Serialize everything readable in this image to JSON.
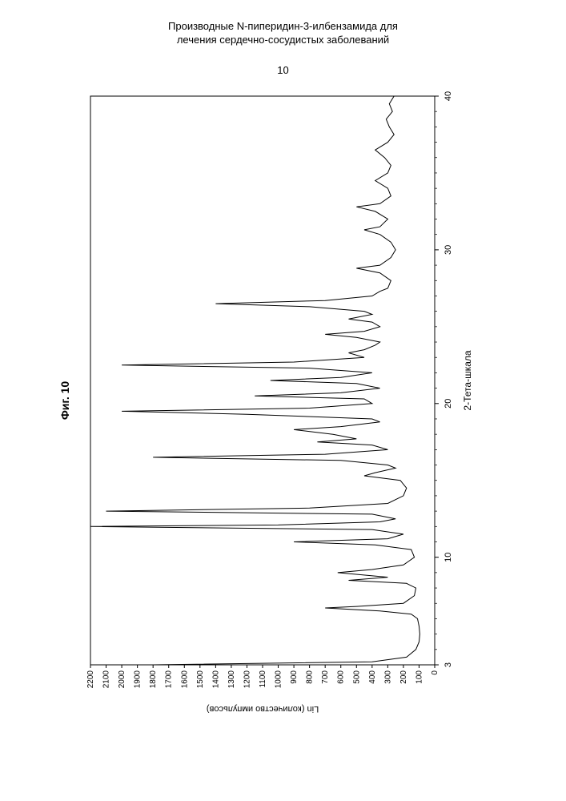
{
  "doc": {
    "header_line1": "Производные N-пиперидин-3-илбензамида для",
    "header_line2": "лечения сердечно-сосудистых заболеваний",
    "page_number": "10"
  },
  "figure": {
    "label": "Фиг. 10",
    "type": "xrd-pattern",
    "y_axis": {
      "label": "Lin (количество импульсов)",
      "min": 0,
      "max": 2200,
      "ticks": [
        0,
        100,
        200,
        300,
        400,
        500,
        600,
        700,
        800,
        900,
        1000,
        1100,
        1200,
        1300,
        1400,
        1500,
        1600,
        1700,
        1800,
        1900,
        2000,
        2100,
        2200
      ],
      "label_fontsize": 11,
      "tick_fontsize": 10
    },
    "x_axis": {
      "label": "2-Тета-шкала",
      "min": 3,
      "max": 40,
      "ticks": [
        3,
        10,
        20,
        30,
        40
      ],
      "label_fontsize": 12,
      "tick_fontsize": 11
    },
    "line_color": "#000000",
    "line_width": 1,
    "background_color": "#ffffff",
    "data_points": [
      [
        3.0,
        1800
      ],
      [
        3.2,
        400
      ],
      [
        3.5,
        180
      ],
      [
        4.0,
        120
      ],
      [
        4.5,
        100
      ],
      [
        5.0,
        95
      ],
      [
        5.5,
        100
      ],
      [
        6.0,
        110
      ],
      [
        6.3,
        150
      ],
      [
        6.5,
        350
      ],
      [
        6.7,
        700
      ],
      [
        6.8,
        500
      ],
      [
        7.0,
        200
      ],
      [
        7.5,
        130
      ],
      [
        8.0,
        120
      ],
      [
        8.3,
        180
      ],
      [
        8.5,
        550
      ],
      [
        8.7,
        300
      ],
      [
        9.0,
        620
      ],
      [
        9.2,
        400
      ],
      [
        9.5,
        200
      ],
      [
        10.0,
        130
      ],
      [
        10.5,
        150
      ],
      [
        10.8,
        380
      ],
      [
        11.0,
        900
      ],
      [
        11.2,
        300
      ],
      [
        11.5,
        200
      ],
      [
        11.8,
        400
      ],
      [
        12.0,
        2200
      ],
      [
        12.1,
        1000
      ],
      [
        12.3,
        350
      ],
      [
        12.5,
        250
      ],
      [
        12.8,
        400
      ],
      [
        13.0,
        2100
      ],
      [
        13.2,
        800
      ],
      [
        13.5,
        300
      ],
      [
        14.0,
        200
      ],
      [
        14.5,
        180
      ],
      [
        15.0,
        220
      ],
      [
        15.3,
        450
      ],
      [
        15.5,
        380
      ],
      [
        15.8,
        250
      ],
      [
        16.0,
        300
      ],
      [
        16.3,
        600
      ],
      [
        16.5,
        1800
      ],
      [
        16.7,
        700
      ],
      [
        17.0,
        300
      ],
      [
        17.3,
        400
      ],
      [
        17.5,
        750
      ],
      [
        17.7,
        500
      ],
      [
        18.0,
        650
      ],
      [
        18.3,
        900
      ],
      [
        18.5,
        600
      ],
      [
        18.8,
        350
      ],
      [
        19.0,
        400
      ],
      [
        19.3,
        1200
      ],
      [
        19.5,
        2000
      ],
      [
        19.7,
        800
      ],
      [
        20.0,
        400
      ],
      [
        20.3,
        450
      ],
      [
        20.5,
        1150
      ],
      [
        20.7,
        600
      ],
      [
        21.0,
        350
      ],
      [
        21.3,
        500
      ],
      [
        21.5,
        1050
      ],
      [
        21.7,
        600
      ],
      [
        22.0,
        400
      ],
      [
        22.3,
        800
      ],
      [
        22.5,
        2000
      ],
      [
        22.7,
        900
      ],
      [
        23.0,
        450
      ],
      [
        23.3,
        550
      ],
      [
        23.5,
        450
      ],
      [
        23.8,
        380
      ],
      [
        24.0,
        350
      ],
      [
        24.3,
        500
      ],
      [
        24.5,
        700
      ],
      [
        24.7,
        450
      ],
      [
        25.0,
        350
      ],
      [
        25.3,
        400
      ],
      [
        25.5,
        550
      ],
      [
        25.8,
        400
      ],
      [
        26.0,
        450
      ],
      [
        26.3,
        800
      ],
      [
        26.5,
        1400
      ],
      [
        26.7,
        700
      ],
      [
        27.0,
        400
      ],
      [
        27.3,
        350
      ],
      [
        27.5,
        300
      ],
      [
        28.0,
        280
      ],
      [
        28.5,
        350
      ],
      [
        28.8,
        500
      ],
      [
        29.0,
        350
      ],
      [
        29.5,
        280
      ],
      [
        30.0,
        250
      ],
      [
        30.5,
        280
      ],
      [
        31.0,
        350
      ],
      [
        31.3,
        450
      ],
      [
        31.5,
        350
      ],
      [
        32.0,
        300
      ],
      [
        32.5,
        380
      ],
      [
        32.8,
        500
      ],
      [
        33.0,
        350
      ],
      [
        33.5,
        280
      ],
      [
        34.0,
        300
      ],
      [
        34.5,
        380
      ],
      [
        35.0,
        300
      ],
      [
        35.5,
        280
      ],
      [
        36.0,
        320
      ],
      [
        36.5,
        380
      ],
      [
        37.0,
        300
      ],
      [
        37.5,
        260
      ],
      [
        38.0,
        290
      ],
      [
        38.5,
        310
      ],
      [
        39.0,
        270
      ],
      [
        39.5,
        290
      ],
      [
        40.0,
        260
      ]
    ]
  }
}
